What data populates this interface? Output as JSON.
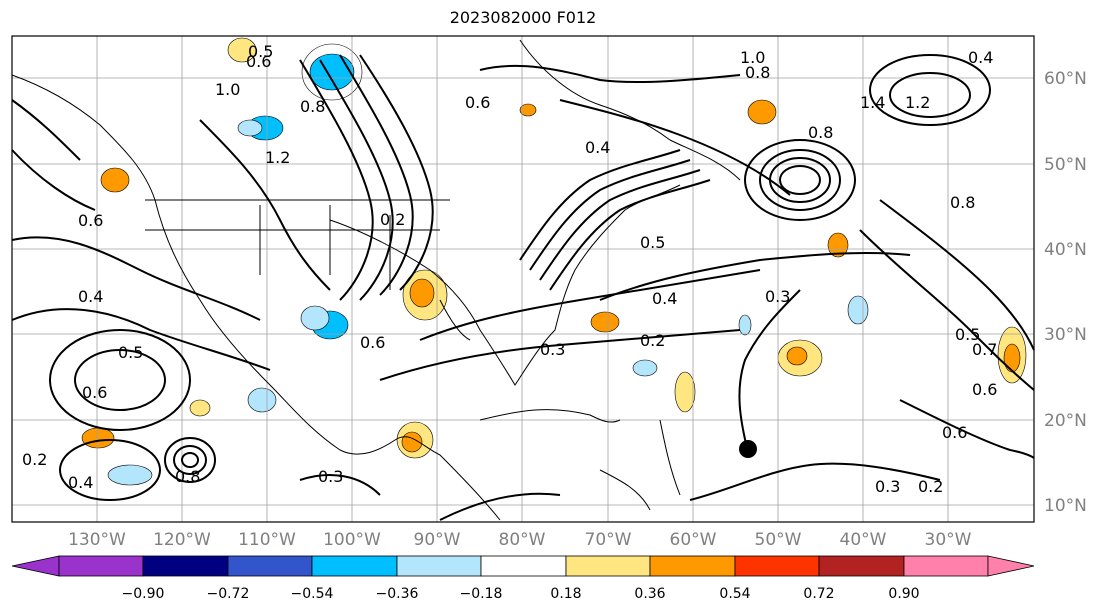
{
  "title": "2023082000 F012",
  "map": {
    "projection": "equirectangular",
    "lon_range_deg": [
      -140,
      -20
    ],
    "lat_range_deg": [
      7,
      65
    ],
    "gridlines": true,
    "lon_labels": [
      "130°W",
      "120°W",
      "110°W",
      "100°W",
      "90°W",
      "80°W",
      "70°W",
      "60°W",
      "50°W",
      "40°W",
      "30°W"
    ],
    "lat_labels": [
      "60°N",
      "50°N",
      "40°N",
      "30°N",
      "20°N",
      "10°N"
    ],
    "contour_labels": [
      "0.5",
      "0.6",
      "0.8",
      "1.0",
      "0.6",
      "0.8",
      "1.2",
      "0.2",
      "0.4",
      "0.8",
      "1.0",
      "1.4",
      "1.2",
      "0.8",
      "0.4",
      "0.5",
      "0.4",
      "0.3",
      "0.3",
      "0.2",
      "0.6",
      "0.4",
      "0.5",
      "0.6",
      "0.2",
      "0.6",
      "0.3",
      "0.3",
      "0.2",
      "0.5",
      "0.7",
      "0.6",
      "0.6",
      "0.4",
      "0.8"
    ],
    "storm_marker": {
      "lon": -54.5,
      "lat": 16.5
    }
  },
  "colorbar": {
    "tick_labels": [
      "−0.90",
      "−0.72",
      "−0.54",
      "−0.36",
      "−0.18",
      "0.18",
      "0.36",
      "0.54",
      "0.72",
      "0.90"
    ],
    "colors": [
      "#9933cc",
      "#000080",
      "#3355cc",
      "#00bfff",
      "#b3e5fc",
      "#ffffff",
      "#ffe680",
      "#ff9900",
      "#ff3300",
      "#b22222",
      "#ff80aa"
    ],
    "extend": "both"
  }
}
